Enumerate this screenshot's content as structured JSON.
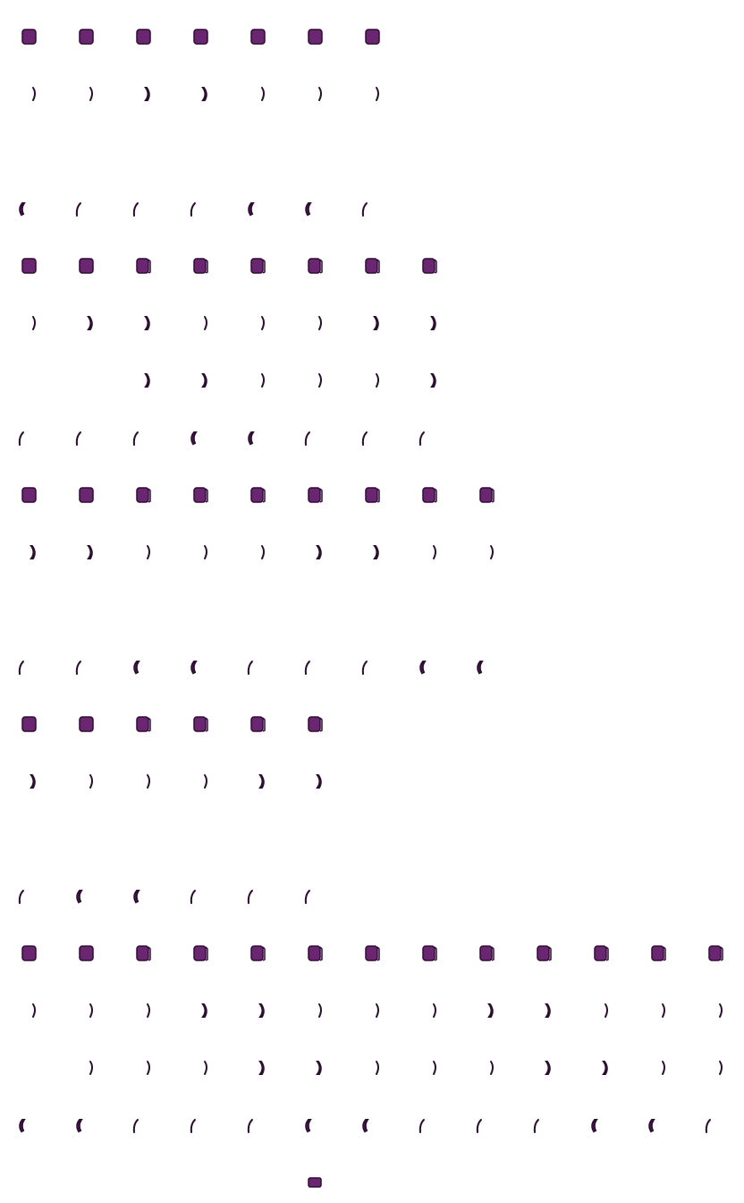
{
  "palette": {
    "fill": "#6a2670",
    "stroke": "#2e0d33",
    "background": "#ffffff"
  },
  "sprite_rows": [
    {
      "kind": "cube",
      "count": 7
    },
    {
      "kind": "wheel",
      "count": 7
    },
    {
      "kind": "gap",
      "count": 0
    },
    {
      "kind": "wheel",
      "count": 7
    },
    {
      "kind": "cube",
      "count": 8
    },
    {
      "kind": "wheel",
      "count": 8
    },
    {
      "kind": "wheel",
      "count": 6,
      "offset": 2
    },
    {
      "kind": "wheel",
      "count": 8
    },
    {
      "kind": "cube",
      "count": 9
    },
    {
      "kind": "wheel",
      "count": 9
    },
    {
      "kind": "gap",
      "count": 0
    },
    {
      "kind": "wheel",
      "count": 9
    },
    {
      "kind": "cube",
      "count": 6
    },
    {
      "kind": "wheel",
      "count": 6
    },
    {
      "kind": "gap",
      "count": 0
    },
    {
      "kind": "wheel",
      "count": 6
    },
    {
      "kind": "cube",
      "count": 13
    },
    {
      "kind": "wheel",
      "count": 13
    },
    {
      "kind": "wheel",
      "count": 12,
      "offset": 1
    },
    {
      "kind": "wheel",
      "count": 13
    },
    {
      "kind": "flat",
      "count": 1,
      "offset": 5
    }
  ]
}
